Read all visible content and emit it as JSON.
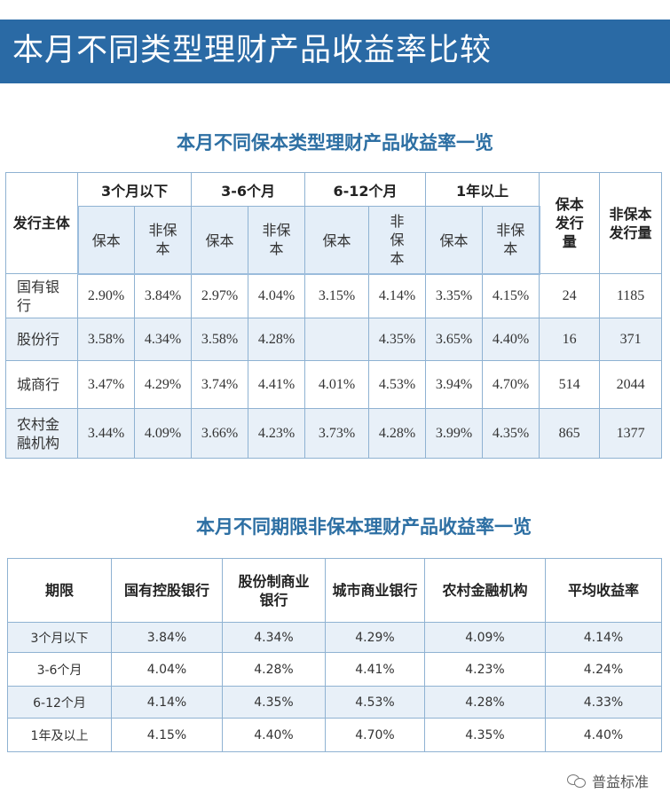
{
  "banner": {
    "title": "本月不同类型理财产品收益率比较"
  },
  "table1": {
    "title": "本月不同保本类型理财产品收益率一览",
    "issuer_header": "发行主体",
    "periods": [
      "3个月以下",
      "3-6个月",
      "6-12个月",
      "1年以上"
    ],
    "sub_headers": {
      "guaranteed": "保本",
      "non_guaranteed": "非保本"
    },
    "count_headers": {
      "guaranteed": "保本发行量",
      "non_guaranteed": "非保本发行量"
    },
    "rows": [
      {
        "bank": "国有银行",
        "values": [
          "2.90%",
          "3.84%",
          "2.97%",
          "4.04%",
          "3.15%",
          "4.14%",
          "3.35%",
          "4.15%"
        ],
        "g_count": "24",
        "ng_count": "1185"
      },
      {
        "bank": "股份行",
        "values": [
          "3.58%",
          "4.34%",
          "3.58%",
          "4.28%",
          "",
          "4.35%",
          "3.65%",
          "4.40%"
        ],
        "g_count": "16",
        "ng_count": "371"
      },
      {
        "bank": "城商行",
        "values": [
          "3.47%",
          "4.29%",
          "3.74%",
          "4.41%",
          "4.01%",
          "4.53%",
          "3.94%",
          "4.70%"
        ],
        "g_count": "514",
        "ng_count": "2044"
      },
      {
        "bank": "农村金融机构",
        "values": [
          "3.44%",
          "4.09%",
          "3.66%",
          "4.23%",
          "3.73%",
          "4.28%",
          "3.99%",
          "4.35%"
        ],
        "g_count": "865",
        "ng_count": "1377"
      }
    ]
  },
  "table2": {
    "title": "本月不同期限非保本理财产品收益率一览",
    "headers": [
      "期限",
      "国有控股银行",
      "股份制商业银行",
      "城市商业银行",
      "农村金融机构",
      "平均收益率"
    ],
    "rows": [
      [
        "3个月以下",
        "3.84%",
        "4.34%",
        "4.29%",
        "4.09%",
        "4.14%"
      ],
      [
        "3-6个月",
        "4.04%",
        "4.28%",
        "4.41%",
        "4.23%",
        "4.24%"
      ],
      [
        "6-12个月",
        "4.14%",
        "4.35%",
        "4.53%",
        "4.28%",
        "4.33%"
      ],
      [
        "1年及以上",
        "4.15%",
        "4.40%",
        "4.70%",
        "4.35%",
        "4.40%"
      ]
    ]
  },
  "watermark": {
    "text": "普益标准",
    "icon": "wechat-icon"
  }
}
